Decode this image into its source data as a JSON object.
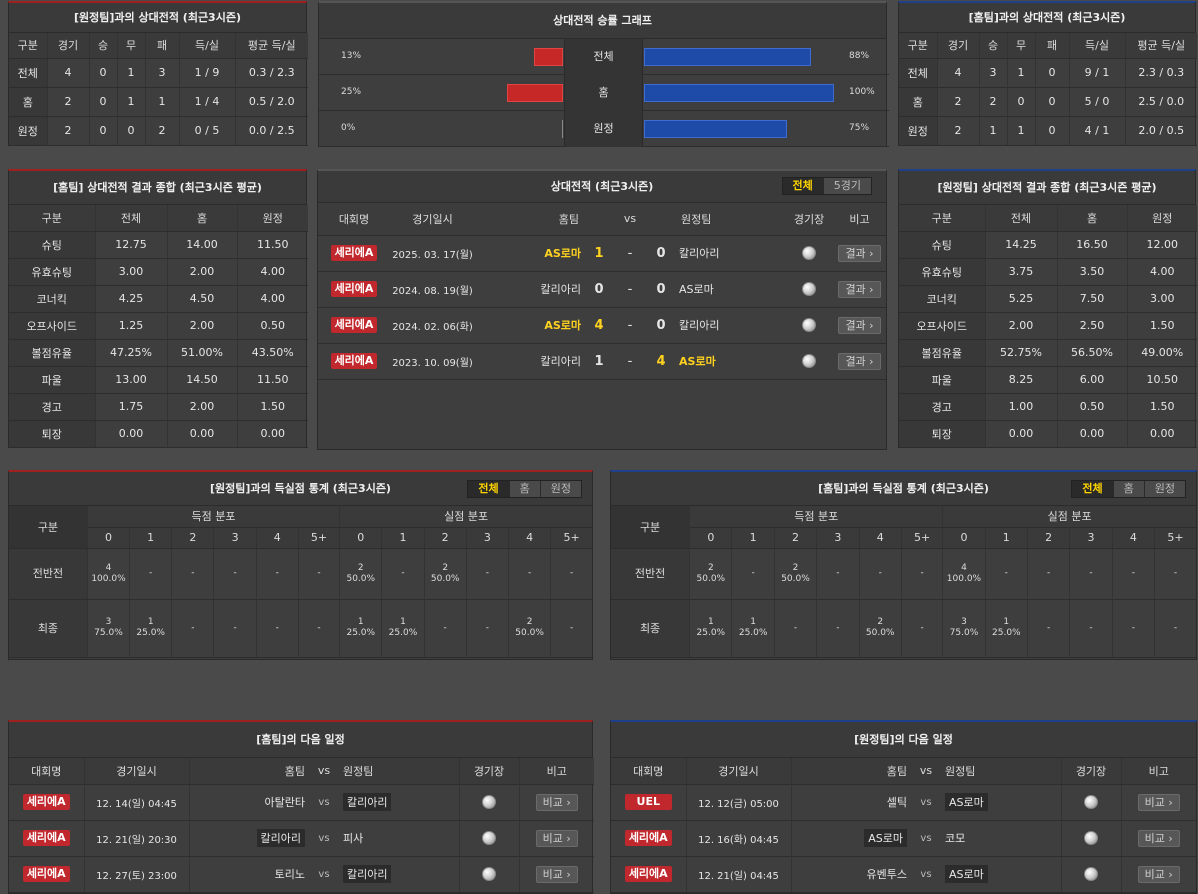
{
  "away_h2h": {
    "title": "[원정팀]과의 상대전적 (최근3시즌)",
    "headers": [
      "구분",
      "경기",
      "승",
      "무",
      "패",
      "득/실",
      "평균 득/실"
    ],
    "rows": [
      [
        "전체",
        "4",
        "0",
        "1",
        "3",
        "1 / 9",
        "0.3 / 2.3"
      ],
      [
        "홈",
        "2",
        "0",
        "1",
        "1",
        "1 / 4",
        "0.5 / 2.0"
      ],
      [
        "원정",
        "2",
        "0",
        "0",
        "2",
        "0 / 5",
        "0.0 / 2.5"
      ]
    ]
  },
  "graph": {
    "title": "상대전적 승률 그래프",
    "rows": [
      {
        "label": "전체",
        "left": "13%",
        "right": "88%",
        "left_val": 13,
        "right_val": 88
      },
      {
        "label": "홈",
        "left": "25%",
        "right": "100%",
        "left_val": 25,
        "right_val": 100
      },
      {
        "label": "원정",
        "left": "0%",
        "right": "75%",
        "left_val": 0,
        "right_val": 75
      }
    ]
  },
  "home_h2h": {
    "title": "[홈팀]과의 상대전적 (최근3시즌)",
    "headers": [
      "구분",
      "경기",
      "승",
      "무",
      "패",
      "득/실",
      "평균 득/실"
    ],
    "rows": [
      [
        "전체",
        "4",
        "3",
        "1",
        "0",
        "9 / 1",
        "2.3 / 0.3"
      ],
      [
        "홈",
        "2",
        "2",
        "0",
        "0",
        "5 / 0",
        "2.5 / 0.0"
      ],
      [
        "원정",
        "2",
        "1",
        "1",
        "0",
        "4 / 1",
        "2.0 / 0.5"
      ]
    ]
  },
  "home_summary": {
    "title": "[홈팀] 상대전적 결과 종합 (최근3시즌 평균)",
    "headers": [
      "구분",
      "전체",
      "홈",
      "원정"
    ],
    "rows": [
      [
        "슈팅",
        "12.75",
        "14.00",
        "11.50"
      ],
      [
        "유효슈팅",
        "3.00",
        "2.00",
        "4.00"
      ],
      [
        "코너킥",
        "4.25",
        "4.50",
        "4.00"
      ],
      [
        "오프사이드",
        "1.25",
        "2.00",
        "0.50"
      ],
      [
        "볼점유율",
        "47.25%",
        "51.00%",
        "43.50%"
      ],
      [
        "파울",
        "13.00",
        "14.50",
        "11.50"
      ],
      [
        "경고",
        "1.75",
        "2.00",
        "1.50"
      ],
      [
        "퇴장",
        "0.00",
        "0.00",
        "0.00"
      ]
    ]
  },
  "away_summary": {
    "title": "[원정팀] 상대전적 결과 종합 (최근3시즌 평균)",
    "headers": [
      "구분",
      "전체",
      "홈",
      "원정"
    ],
    "rows": [
      [
        "슈팅",
        "14.25",
        "16.50",
        "12.00"
      ],
      [
        "유효슈팅",
        "3.75",
        "3.50",
        "4.00"
      ],
      [
        "코너킥",
        "5.25",
        "7.50",
        "3.00"
      ],
      [
        "오프사이드",
        "2.00",
        "2.50",
        "1.50"
      ],
      [
        "볼점유율",
        "52.75%",
        "56.50%",
        "49.00%"
      ],
      [
        "파울",
        "8.25",
        "6.00",
        "10.50"
      ],
      [
        "경고",
        "1.00",
        "0.50",
        "1.50"
      ],
      [
        "퇴장",
        "0.00",
        "0.00",
        "0.00"
      ]
    ]
  },
  "matches": {
    "title": "상대전적 (최근3시즌)",
    "tabs": [
      "전체",
      "5경기"
    ],
    "headers": {
      "league": "대회명",
      "date": "경기일시",
      "home": "홈팀",
      "vs": "vs",
      "away": "원정팀",
      "venue": "경기장",
      "note": "비고"
    },
    "button": "결과",
    "rows": [
      {
        "league": "세리에A",
        "date": "2025. 03. 17(월)",
        "home": "AS로마",
        "hs": "1",
        "as": "0",
        "away": "칼리아리",
        "winner": "home"
      },
      {
        "league": "세리에A",
        "date": "2024. 08. 19(월)",
        "home": "칼리아리",
        "hs": "0",
        "as": "0",
        "away": "AS로마",
        "winner": "none"
      },
      {
        "league": "세리에A",
        "date": "2024. 02. 06(화)",
        "home": "AS로마",
        "hs": "4",
        "as": "0",
        "away": "칼리아리",
        "winner": "home"
      },
      {
        "league": "세리에A",
        "date": "2023. 10. 09(월)",
        "home": "칼리아리",
        "hs": "1",
        "as": "4",
        "away": "AS로마",
        "winner": "away"
      }
    ]
  },
  "away_goals": {
    "title": "[원정팀]과의 득실점 통계 (최근3시즌)",
    "tabs": [
      "전체",
      "홈",
      "원정"
    ],
    "col_label": "구분",
    "scored_label": "득점 분포",
    "conceded_label": "실점 분포",
    "buckets": [
      "0",
      "1",
      "2",
      "3",
      "4",
      "5+"
    ],
    "rows": [
      {
        "label": "전반전",
        "scored": [
          [
            "4",
            "100.0%"
          ],
          [
            "-",
            ""
          ],
          [
            "-",
            ""
          ],
          [
            "-",
            ""
          ],
          [
            "-",
            ""
          ],
          [
            "-",
            ""
          ]
        ],
        "conceded": [
          [
            "2",
            "50.0%"
          ],
          [
            "-",
            ""
          ],
          [
            "2",
            "50.0%"
          ],
          [
            "-",
            ""
          ],
          [
            "-",
            ""
          ],
          [
            "-",
            ""
          ]
        ]
      },
      {
        "label": "최종",
        "scored": [
          [
            "3",
            "75.0%"
          ],
          [
            "1",
            "25.0%"
          ],
          [
            "-",
            ""
          ],
          [
            "-",
            ""
          ],
          [
            "-",
            ""
          ],
          [
            "-",
            ""
          ]
        ],
        "conceded": [
          [
            "1",
            "25.0%"
          ],
          [
            "1",
            "25.0%"
          ],
          [
            "-",
            ""
          ],
          [
            "-",
            ""
          ],
          [
            "2",
            "50.0%"
          ],
          [
            "-",
            ""
          ]
        ]
      }
    ]
  },
  "home_goals": {
    "title": "[홈팀]과의 득실점 통계 (최근3시즌)",
    "tabs": [
      "전체",
      "홈",
      "원정"
    ],
    "col_label": "구분",
    "scored_label": "득점 분포",
    "conceded_label": "실점 분포",
    "buckets": [
      "0",
      "1",
      "2",
      "3",
      "4",
      "5+"
    ],
    "rows": [
      {
        "label": "전반전",
        "scored": [
          [
            "2",
            "50.0%"
          ],
          [
            "-",
            ""
          ],
          [
            "2",
            "50.0%"
          ],
          [
            "-",
            ""
          ],
          [
            "-",
            ""
          ],
          [
            "-",
            ""
          ]
        ],
        "conceded": [
          [
            "4",
            "100.0%"
          ],
          [
            "-",
            ""
          ],
          [
            "-",
            ""
          ],
          [
            "-",
            ""
          ],
          [
            "-",
            ""
          ],
          [
            "-",
            ""
          ]
        ]
      },
      {
        "label": "최종",
        "scored": [
          [
            "1",
            "25.0%"
          ],
          [
            "1",
            "25.0%"
          ],
          [
            "-",
            ""
          ],
          [
            "-",
            ""
          ],
          [
            "2",
            "50.0%"
          ],
          [
            "-",
            ""
          ]
        ],
        "conceded": [
          [
            "3",
            "75.0%"
          ],
          [
            "1",
            "25.0%"
          ],
          [
            "-",
            ""
          ],
          [
            "-",
            ""
          ],
          [
            "-",
            ""
          ],
          [
            "-",
            ""
          ]
        ]
      }
    ]
  },
  "home_next": {
    "title": "[홈팀]의 다음 일정",
    "headers": {
      "league": "대회명",
      "date": "경기일시",
      "home": "홈팀",
      "vs": "vs",
      "away": "원정팀",
      "venue": "경기장",
      "note": "비고"
    },
    "button": "비교",
    "rows": [
      {
        "league": "세리에A",
        "date": "12. 14(일) 04:45",
        "home": "아탈란타",
        "away": "칼리아리",
        "boxed": "away"
      },
      {
        "league": "세리에A",
        "date": "12. 21(일) 20:30",
        "home": "칼리아리",
        "away": "피사",
        "boxed": "home"
      },
      {
        "league": "세리에A",
        "date": "12. 27(토) 23:00",
        "home": "토리노",
        "away": "칼리아리",
        "boxed": "away"
      }
    ]
  },
  "away_next": {
    "title": "[원정팀]의 다음 일정",
    "headers": {
      "league": "대회명",
      "date": "경기일시",
      "home": "홈팀",
      "vs": "vs",
      "away": "원정팀",
      "venue": "경기장",
      "note": "비고"
    },
    "button": "비교",
    "rows": [
      {
        "league": "UEL",
        "date": "12. 12(금) 05:00",
        "home": "셀틱",
        "away": "AS로마",
        "boxed": "away"
      },
      {
        "league": "세리에A",
        "date": "12. 16(화) 04:45",
        "home": "AS로마",
        "away": "코모",
        "boxed": "home"
      },
      {
        "league": "세리에A",
        "date": "12. 21(일) 04:45",
        "home": "유벤투스",
        "away": "AS로마",
        "boxed": "away"
      }
    ]
  },
  "colors": {
    "red": "#c62828",
    "blue": "#1e4aa8",
    "gold": "#ffd21f",
    "badge": "#c0282d"
  },
  "icons": {
    "venue": "stadium-icon",
    "button": "chevron-right-icon"
  }
}
